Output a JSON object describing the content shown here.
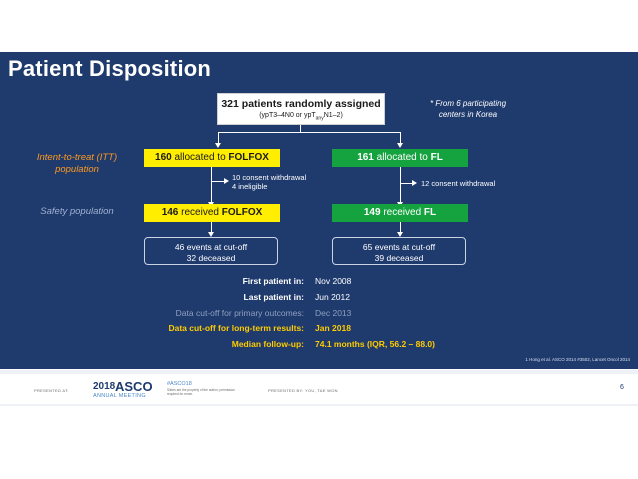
{
  "slide": {
    "title": "Patient Disposition",
    "top_box": {
      "main": "321 patients randomly assigned",
      "sub_prefix": "(ypT3–4N0 or ypT",
      "sub_subscript": "any",
      "sub_suffix": "N1–2)"
    },
    "note": {
      "line1": "* From 6 participating",
      "line2": "centers in Korea"
    },
    "itt_label": {
      "line1": "Intent-to-treat (ITT)",
      "line2": "population"
    },
    "safety_label": "Safety population",
    "left_arm": {
      "count": "160",
      "allocated_text": "allocated to",
      "name": "FOLFOX",
      "withdrawal_line1": "10 consent withdrawal",
      "withdrawal_line2": "4 ineligible",
      "received_count": "146",
      "received_text": "received",
      "events": "46 events at cut-off",
      "deceased": "32 deceased"
    },
    "right_arm": {
      "count": "161",
      "allocated_text": "allocated to",
      "name": "FL",
      "withdrawal": "12 consent withdrawal",
      "received_count": "149",
      "received_text": "received",
      "events": "65 events at cut-off",
      "deceased": "39 deceased"
    },
    "info": [
      {
        "label": "First patient in:",
        "value": "Nov 2008"
      },
      {
        "label": "Last patient in:",
        "value": "Jun 2012"
      },
      {
        "label": "Data cut-off for primary outcomes:",
        "value": "Dec 2013"
      },
      {
        "label": "Data cut-off for long-term results:",
        "value": "Jan 2018"
      },
      {
        "label": "Median follow-up:",
        "value": "74.1 months (IQR, 56.2 – 88.0)"
      }
    ],
    "reference": "1 Hong et al.  ASCO 2014 #3502,  Lancet Oncol 2014"
  },
  "footer": {
    "presented_at": "PRESENTED AT:",
    "logo_year": "2018",
    "logo_name": "ASCO",
    "logo_meeting": "ANNUAL MEETING",
    "hashtag": "#ASCO18",
    "hashtag_sub": "Slides are the property of the author, permission required for reuse.",
    "presented_by": "PRESENTED BY: YOU, TAE WON",
    "page_number": "6"
  },
  "colors": {
    "background": "#1f3a6d",
    "yellow": "#ffee00",
    "green": "#14a33f",
    "orange_label": "#ff9a1e",
    "highlight_text": "#ffcc00"
  }
}
